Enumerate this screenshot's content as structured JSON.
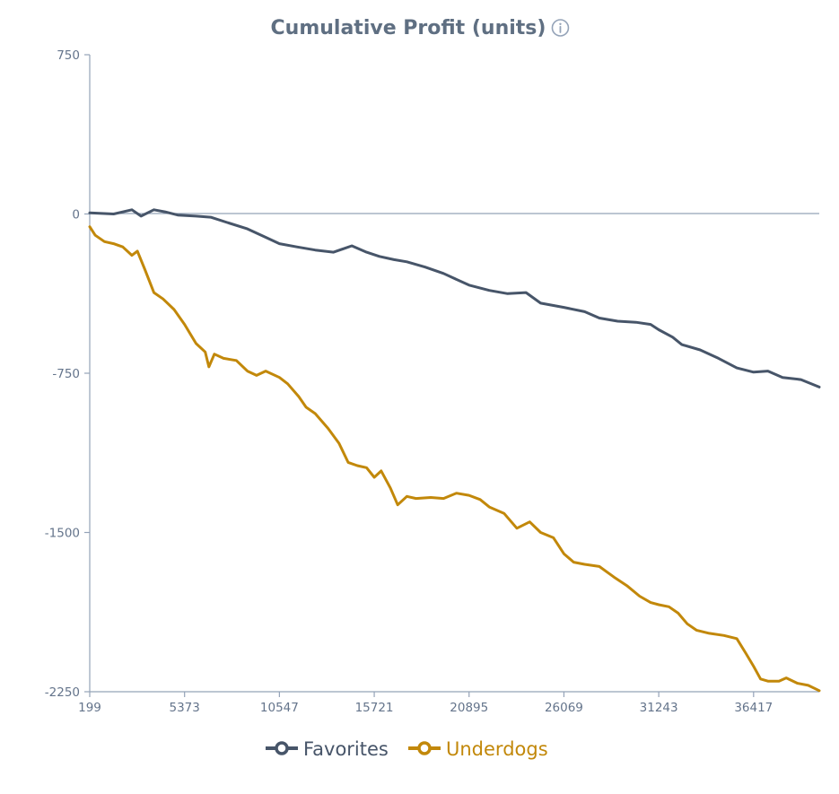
{
  "chart_data": {
    "type": "line",
    "title": "Cumulative Profit (units)",
    "info_icon": "info-icon",
    "xlabel": "",
    "ylabel": "",
    "xlim": [
      199,
      40000
    ],
    "ylim": [
      -2250,
      750
    ],
    "x_ticks": [
      "199",
      "5373",
      "10547",
      "15721",
      "20895",
      "26069",
      "31243",
      "36417"
    ],
    "y_ticks": [
      "750",
      "0",
      "-750",
      "-1500",
      "-2250"
    ],
    "grid": false,
    "zero_line": true,
    "legend_position": "bottom",
    "series": [
      {
        "name": "Favorites",
        "color": "#475569",
        "points": [
          [
            199,
            5
          ],
          [
            1500,
            0
          ],
          [
            2500,
            20
          ],
          [
            3000,
            -10
          ],
          [
            3700,
            20
          ],
          [
            4300,
            10
          ],
          [
            5000,
            -5
          ],
          [
            6000,
            -10
          ],
          [
            6800,
            -15
          ],
          [
            7700,
            -40
          ],
          [
            8800,
            -70
          ],
          [
            9800,
            -110
          ],
          [
            10547,
            -140
          ],
          [
            11500,
            -155
          ],
          [
            12500,
            -170
          ],
          [
            13500,
            -180
          ],
          [
            14500,
            -150
          ],
          [
            15300,
            -180
          ],
          [
            16000,
            -200
          ],
          [
            16800,
            -215
          ],
          [
            17500,
            -225
          ],
          [
            18500,
            -250
          ],
          [
            19500,
            -280
          ],
          [
            20000,
            -300
          ],
          [
            20895,
            -335
          ],
          [
            22000,
            -360
          ],
          [
            23000,
            -375
          ],
          [
            24000,
            -370
          ],
          [
            24800,
            -420
          ],
          [
            26069,
            -440
          ],
          [
            27200,
            -460
          ],
          [
            28000,
            -490
          ],
          [
            29000,
            -505
          ],
          [
            30000,
            -510
          ],
          [
            30800,
            -520
          ],
          [
            31243,
            -545
          ],
          [
            32000,
            -580
          ],
          [
            32500,
            -615
          ],
          [
            33500,
            -640
          ],
          [
            34500,
            -680
          ],
          [
            35500,
            -725
          ],
          [
            36417,
            -745
          ],
          [
            37200,
            -740
          ],
          [
            38000,
            -770
          ],
          [
            39000,
            -780
          ],
          [
            40000,
            -815
          ]
        ]
      },
      {
        "name": "Underdogs",
        "color": "#c2880a",
        "points": [
          [
            199,
            -60
          ],
          [
            500,
            -100
          ],
          [
            1000,
            -130
          ],
          [
            1500,
            -140
          ],
          [
            2000,
            -155
          ],
          [
            2500,
            -195
          ],
          [
            2800,
            -175
          ],
          [
            3200,
            -260
          ],
          [
            3700,
            -370
          ],
          [
            4200,
            -400
          ],
          [
            4800,
            -450
          ],
          [
            5373,
            -520
          ],
          [
            6000,
            -610
          ],
          [
            6500,
            -650
          ],
          [
            6700,
            -720
          ],
          [
            7000,
            -660
          ],
          [
            7500,
            -680
          ],
          [
            8200,
            -690
          ],
          [
            8800,
            -740
          ],
          [
            9300,
            -760
          ],
          [
            9800,
            -740
          ],
          [
            10547,
            -770
          ],
          [
            11000,
            -800
          ],
          [
            11600,
            -860
          ],
          [
            12000,
            -910
          ],
          [
            12500,
            -940
          ],
          [
            13200,
            -1010
          ],
          [
            13800,
            -1080
          ],
          [
            14300,
            -1170
          ],
          [
            14800,
            -1185
          ],
          [
            15300,
            -1195
          ],
          [
            15721,
            -1240
          ],
          [
            16100,
            -1210
          ],
          [
            16600,
            -1290
          ],
          [
            17000,
            -1370
          ],
          [
            17500,
            -1330
          ],
          [
            18000,
            -1340
          ],
          [
            18800,
            -1335
          ],
          [
            19500,
            -1340
          ],
          [
            20200,
            -1315
          ],
          [
            20895,
            -1325
          ],
          [
            21500,
            -1345
          ],
          [
            22000,
            -1380
          ],
          [
            22800,
            -1410
          ],
          [
            23500,
            -1480
          ],
          [
            24200,
            -1450
          ],
          [
            24800,
            -1500
          ],
          [
            25500,
            -1525
          ],
          [
            26069,
            -1600
          ],
          [
            26600,
            -1640
          ],
          [
            27200,
            -1650
          ],
          [
            28000,
            -1660
          ],
          [
            28800,
            -1710
          ],
          [
            29500,
            -1750
          ],
          [
            30200,
            -1800
          ],
          [
            30800,
            -1830
          ],
          [
            31243,
            -1840
          ],
          [
            31800,
            -1850
          ],
          [
            32300,
            -1880
          ],
          [
            32800,
            -1930
          ],
          [
            33300,
            -1960
          ],
          [
            34000,
            -1975
          ],
          [
            34800,
            -1985
          ],
          [
            35500,
            -2000
          ],
          [
            36000,
            -2070
          ],
          [
            36417,
            -2130
          ],
          [
            36800,
            -2190
          ],
          [
            37200,
            -2200
          ],
          [
            37800,
            -2200
          ],
          [
            38200,
            -2185
          ],
          [
            38800,
            -2210
          ],
          [
            39400,
            -2220
          ],
          [
            40000,
            -2245
          ]
        ]
      }
    ]
  }
}
